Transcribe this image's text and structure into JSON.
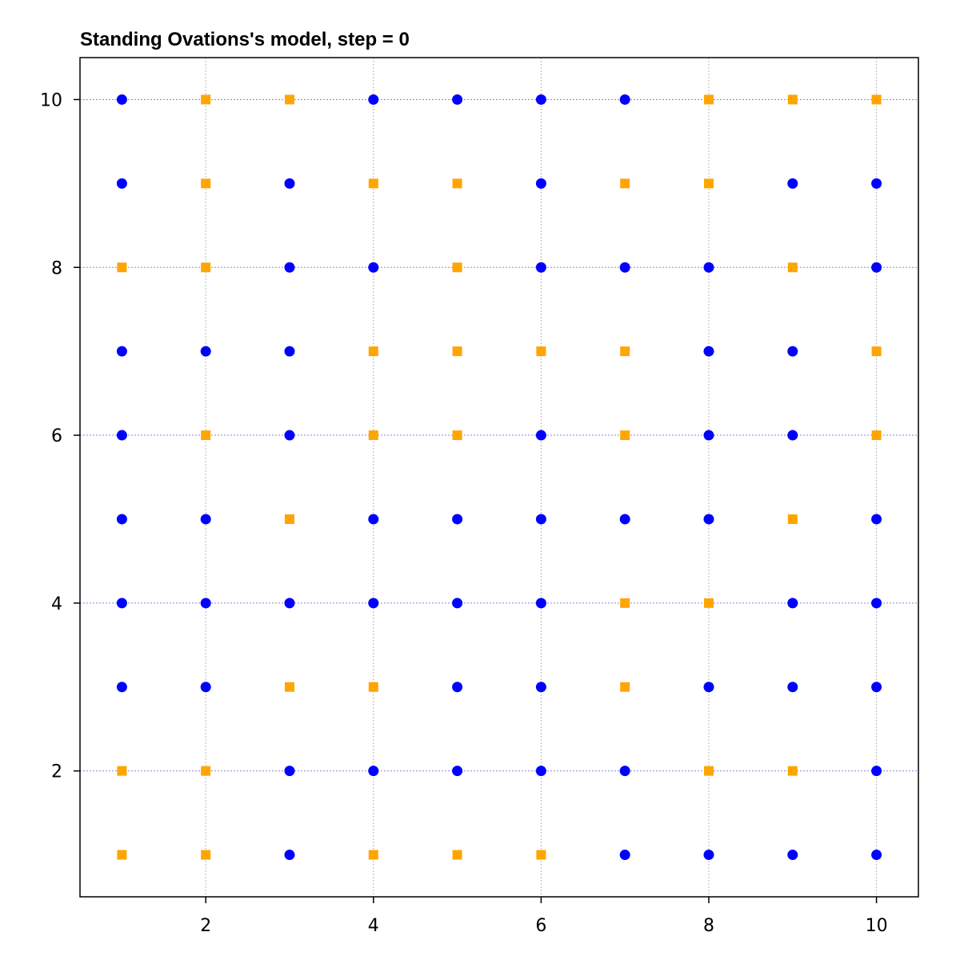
{
  "chart_data": {
    "type": "scatter",
    "title": "Standing Ovations's model, step = 0",
    "xlabel": "",
    "ylabel": "",
    "xlim": [
      0.5,
      10.5
    ],
    "ylim": [
      0.5,
      10.5
    ],
    "xticks": [
      2,
      4,
      6,
      8,
      10
    ],
    "yticks": [
      2,
      4,
      6,
      8,
      10
    ],
    "grid": true,
    "series": [
      {
        "marker": "circle",
        "color": "#0000ff",
        "points": [
          [
            1,
            10
          ],
          [
            4,
            10
          ],
          [
            5,
            10
          ],
          [
            6,
            10
          ],
          [
            7,
            10
          ],
          [
            1,
            9
          ],
          [
            3,
            9
          ],
          [
            6,
            9
          ],
          [
            9,
            9
          ],
          [
            10,
            9
          ],
          [
            3,
            8
          ],
          [
            4,
            8
          ],
          [
            6,
            8
          ],
          [
            7,
            8
          ],
          [
            8,
            8
          ],
          [
            10,
            8
          ],
          [
            1,
            7
          ],
          [
            2,
            7
          ],
          [
            3,
            7
          ],
          [
            8,
            7
          ],
          [
            9,
            7
          ],
          [
            1,
            6
          ],
          [
            3,
            6
          ],
          [
            6,
            6
          ],
          [
            8,
            6
          ],
          [
            9,
            6
          ],
          [
            1,
            5
          ],
          [
            2,
            5
          ],
          [
            4,
            5
          ],
          [
            5,
            5
          ],
          [
            6,
            5
          ],
          [
            7,
            5
          ],
          [
            8,
            5
          ],
          [
            10,
            5
          ],
          [
            1,
            4
          ],
          [
            2,
            4
          ],
          [
            3,
            4
          ],
          [
            4,
            4
          ],
          [
            5,
            4
          ],
          [
            6,
            4
          ],
          [
            9,
            4
          ],
          [
            10,
            4
          ],
          [
            1,
            3
          ],
          [
            2,
            3
          ],
          [
            5,
            3
          ],
          [
            6,
            3
          ],
          [
            8,
            3
          ],
          [
            9,
            3
          ],
          [
            10,
            3
          ],
          [
            3,
            2
          ],
          [
            4,
            2
          ],
          [
            5,
            2
          ],
          [
            6,
            2
          ],
          [
            7,
            2
          ],
          [
            10,
            2
          ],
          [
            3,
            1
          ],
          [
            7,
            1
          ],
          [
            8,
            1
          ],
          [
            9,
            1
          ],
          [
            10,
            1
          ]
        ]
      },
      {
        "marker": "square",
        "color": "#ffa500",
        "points": [
          [
            2,
            10
          ],
          [
            3,
            10
          ],
          [
            8,
            10
          ],
          [
            9,
            10
          ],
          [
            10,
            10
          ],
          [
            2,
            9
          ],
          [
            4,
            9
          ],
          [
            5,
            9
          ],
          [
            7,
            9
          ],
          [
            8,
            9
          ],
          [
            1,
            8
          ],
          [
            2,
            8
          ],
          [
            5,
            8
          ],
          [
            9,
            8
          ],
          [
            4,
            7
          ],
          [
            5,
            7
          ],
          [
            6,
            7
          ],
          [
            7,
            7
          ],
          [
            10,
            7
          ],
          [
            2,
            6
          ],
          [
            4,
            6
          ],
          [
            5,
            6
          ],
          [
            7,
            6
          ],
          [
            10,
            6
          ],
          [
            3,
            5
          ],
          [
            9,
            5
          ],
          [
            7,
            4
          ],
          [
            8,
            4
          ],
          [
            3,
            3
          ],
          [
            4,
            3
          ],
          [
            7,
            3
          ],
          [
            1,
            2
          ],
          [
            2,
            2
          ],
          [
            8,
            2
          ],
          [
            9,
            2
          ],
          [
            1,
            1
          ],
          [
            2,
            1
          ],
          [
            4,
            1
          ],
          [
            5,
            1
          ],
          [
            6,
            1
          ]
        ]
      }
    ]
  }
}
